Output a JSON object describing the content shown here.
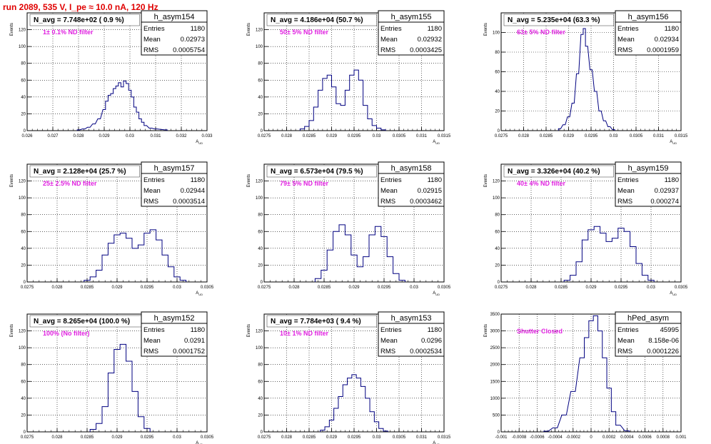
{
  "run_title": "run 2089,   535 V, I_pe ≈ 10.0 nA, 120 Hz",
  "colors": {
    "histogram": "#000080",
    "title": "#e00000",
    "filter_label": "#e020e0",
    "grid": "#000000"
  },
  "chart_data": [
    {
      "type": "histogram",
      "name": "h_asym154",
      "annotation": "N_avg = 7.748e+02 ( 0.9 %)",
      "filter_label": "1± 0.1% ND filter",
      "stats": {
        "Entries": "1180",
        "Mean": "0.02973",
        "RMS": "0.0005754"
      },
      "xlabel": "A_UD",
      "ylabel": "Events",
      "xlim": [
        0.026,
        0.033
      ],
      "ylim": [
        0,
        140
      ],
      "xticks": [
        "0.026",
        "0.027",
        "0.028",
        "0.029",
        "0.03",
        "0.031",
        "0.032",
        "0.033"
      ],
      "yticks": [
        "0",
        "20",
        "40",
        "60",
        "80",
        "100",
        "120"
      ],
      "x": [
        0.028,
        0.0282,
        0.0284,
        0.0286,
        0.0288,
        0.029,
        0.0291,
        0.0292,
        0.0293,
        0.0294,
        0.0295,
        0.0296,
        0.0297,
        0.0298,
        0.0299,
        0.03,
        0.0301,
        0.0302,
        0.0303,
        0.0304,
        0.0305,
        0.0306,
        0.0308,
        0.031,
        0.0314
      ],
      "y": [
        1,
        2,
        4,
        8,
        14,
        25,
        35,
        42,
        44,
        50,
        53,
        57,
        52,
        59,
        56,
        48,
        40,
        28,
        22,
        14,
        10,
        6,
        3,
        2,
        1
      ]
    },
    {
      "type": "histogram",
      "name": "h_asym155",
      "annotation": "N_avg = 4.186e+04 (50.7 %)",
      "filter_label": "50± 5% ND filter",
      "stats": {
        "Entries": "1180",
        "Mean": "0.02932",
        "RMS": "0.0003425"
      },
      "xlabel": "A_UD",
      "ylabel": "Events",
      "xlim": [
        0.0275,
        0.0315
      ],
      "ylim": [
        0,
        140
      ],
      "xticks": [
        "0.0275",
        "0.028",
        "0.0285",
        "0.029",
        "0.0295",
        "0.03",
        "0.0305",
        "0.031",
        "0.0315"
      ],
      "yticks": [
        "0",
        "20",
        "40",
        "60",
        "80",
        "100",
        "120"
      ],
      "x": [
        0.02835,
        0.02845,
        0.02855,
        0.02865,
        0.02875,
        0.02885,
        0.02895,
        0.02905,
        0.02915,
        0.02925,
        0.02935,
        0.02945,
        0.02955,
        0.02965,
        0.02975,
        0.02985,
        0.02995,
        0.03005,
        0.03015
      ],
      "y": [
        2,
        5,
        12,
        28,
        48,
        62,
        66,
        52,
        32,
        30,
        48,
        66,
        72,
        60,
        30,
        14,
        6,
        3,
        1
      ]
    },
    {
      "type": "histogram",
      "name": "h_asym156",
      "annotation": "N_avg = 5.235e+04 (63.3 %)",
      "filter_label": "63± 5% ND filter",
      "stats": {
        "Entries": "1180",
        "Mean": "0.02934",
        "RMS": "0.0001959"
      },
      "xlabel": "A_UD",
      "ylabel": "Events",
      "xlim": [
        0.0275,
        0.0315
      ],
      "ylim": [
        0,
        120
      ],
      "xticks": [
        "0.0275",
        "0.028",
        "0.0285",
        "0.029",
        "0.0295",
        "0.03",
        "0.0305",
        "0.031",
        "0.0315"
      ],
      "yticks": [
        "0",
        "20",
        "40",
        "60",
        "80",
        "100"
      ],
      "x": [
        0.0288,
        0.0289,
        0.029,
        0.0291,
        0.0292,
        0.0293,
        0.02935,
        0.0294,
        0.0295,
        0.0296,
        0.0297,
        0.0298,
        0.0299,
        0.03
      ],
      "y": [
        2,
        6,
        14,
        28,
        58,
        98,
        104,
        86,
        62,
        40,
        20,
        10,
        4,
        1
      ]
    },
    {
      "type": "histogram",
      "name": "h_asym157",
      "annotation": "N_avg = 2.128e+04 (25.7 %)",
      "filter_label": "25± 2.5% ND filter",
      "stats": {
        "Entries": "1180",
        "Mean": "0.02944",
        "RMS": "0.0003514"
      },
      "xlabel": "A_UD",
      "ylabel": "Events",
      "xlim": [
        0.0275,
        0.0305
      ],
      "ylim": [
        0,
        140
      ],
      "xticks": [
        "0.0275",
        "0.028",
        "0.0285",
        "0.029",
        "0.0295",
        "0.03",
        "0.0305"
      ],
      "yticks": [
        "0",
        "20",
        "40",
        "60",
        "80",
        "100",
        "120"
      ],
      "x": [
        0.0285,
        0.0286,
        0.0287,
        0.0288,
        0.0289,
        0.029,
        0.0291,
        0.0292,
        0.0293,
        0.0294,
        0.0295,
        0.0296,
        0.0297,
        0.0298,
        0.0299,
        0.03,
        0.0301
      ],
      "y": [
        2,
        6,
        14,
        32,
        46,
        56,
        58,
        52,
        40,
        44,
        58,
        62,
        50,
        32,
        18,
        6,
        2
      ]
    },
    {
      "type": "histogram",
      "name": "h_asym158",
      "annotation": "N_avg = 6.573e+04 (79.5 %)",
      "filter_label": "79± 5% ND filter",
      "stats": {
        "Entries": "1180",
        "Mean": "0.02915",
        "RMS": "0.0003462"
      },
      "xlabel": "A_UD",
      "ylabel": "Events",
      "xlim": [
        0.0275,
        0.0305
      ],
      "ylim": [
        0,
        140
      ],
      "xticks": [
        "0.0275",
        "0.028",
        "0.0285",
        "0.029",
        "0.0295",
        "0.03",
        "0.0305"
      ],
      "yticks": [
        "0",
        "20",
        "40",
        "60",
        "80",
        "100",
        "120"
      ],
      "x": [
        0.0284,
        0.0285,
        0.0286,
        0.0287,
        0.0288,
        0.0289,
        0.029,
        0.0291,
        0.0292,
        0.0293,
        0.0294,
        0.0295,
        0.0296,
        0.0297,
        0.0298
      ],
      "y": [
        4,
        14,
        38,
        60,
        68,
        56,
        32,
        18,
        30,
        56,
        66,
        54,
        30,
        10,
        2
      ]
    },
    {
      "type": "histogram",
      "name": "h_asym159",
      "annotation": "N_avg = 3.326e+04 (40.2 %)",
      "filter_label": "40± 4% ND filter",
      "stats": {
        "Entries": "1180",
        "Mean": "0.02937",
        "RMS": "0.000274"
      },
      "xlabel": "A_UD",
      "ylabel": "Events",
      "xlim": [
        0.0275,
        0.0305
      ],
      "ylim": [
        0,
        140
      ],
      "xticks": [
        "0.0275",
        "0.028",
        "0.0285",
        "0.029",
        "0.0295",
        "0.03",
        "0.0305"
      ],
      "yticks": [
        "0",
        "20",
        "40",
        "60",
        "80",
        "100",
        "120"
      ],
      "x": [
        0.0286,
        0.0287,
        0.0288,
        0.0289,
        0.029,
        0.0291,
        0.0292,
        0.0293,
        0.0294,
        0.0295,
        0.0296,
        0.0297,
        0.0298,
        0.0299,
        0.03
      ],
      "y": [
        2,
        8,
        24,
        50,
        62,
        66,
        58,
        48,
        52,
        64,
        60,
        42,
        22,
        8,
        2
      ]
    },
    {
      "type": "histogram",
      "name": "h_asym152",
      "annotation": "N_avg = 8.265e+04 (100.0 %)",
      "filter_label": "100% (No filter)",
      "stats": {
        "Entries": "1180",
        "Mean": "0.0291",
        "RMS": "0.0001752"
      },
      "xlabel": "A_UD",
      "ylabel": "Events",
      "xlim": [
        0.0275,
        0.0305
      ],
      "ylim": [
        0,
        140
      ],
      "xticks": [
        "0.0275",
        "0.028",
        "0.0285",
        "0.029",
        "0.0295",
        "0.03",
        "0.0305"
      ],
      "yticks": [
        "0",
        "20",
        "40",
        "60",
        "80",
        "100",
        "120"
      ],
      "x": [
        0.0286,
        0.0287,
        0.0288,
        0.0289,
        0.029,
        0.0291,
        0.0292,
        0.0293,
        0.0294,
        0.0295
      ],
      "y": [
        3,
        10,
        30,
        70,
        98,
        104,
        84,
        48,
        18,
        4
      ]
    },
    {
      "type": "histogram",
      "name": "h_asym153",
      "annotation": "N_avg = 7.784e+03 ( 9.4 %)",
      "filter_label": "10± 1% ND filter",
      "stats": {
        "Entries": "1180",
        "Mean": "0.0296",
        "RMS": "0.0002534"
      },
      "xlabel": "A_UD",
      "ylabel": "Events",
      "xlim": [
        0.0275,
        0.0315
      ],
      "ylim": [
        0,
        140
      ],
      "xticks": [
        "0.0275",
        "0.028",
        "0.0285",
        "0.029",
        "0.0295",
        "0.03",
        "0.0305",
        "0.031",
        "0.0315"
      ],
      "yticks": [
        "0",
        "20",
        "40",
        "60",
        "80",
        "100",
        "120"
      ],
      "x": [
        0.0288,
        0.0289,
        0.029,
        0.0291,
        0.0292,
        0.0293,
        0.0294,
        0.0295,
        0.0296,
        0.0297,
        0.0298,
        0.0299,
        0.03,
        0.0301,
        0.0302
      ],
      "y": [
        2,
        6,
        14,
        28,
        42,
        56,
        64,
        68,
        64,
        54,
        40,
        24,
        12,
        4,
        1
      ]
    },
    {
      "type": "histogram",
      "name": "hPed_asym",
      "annotation": "",
      "filter_label": "Shutter Closed",
      "stats": {
        "Entries": "45995",
        "Mean": "8.158e-06",
        "RMS": "0.0001226"
      },
      "xlabel": "",
      "ylabel": "Events",
      "xlim": [
        -0.001,
        0.001
      ],
      "ylim": [
        0,
        3500
      ],
      "xticks": [
        "-0.001",
        "-0.0008",
        "-0.0006",
        "-0.0004",
        "-0.0002",
        "0",
        "0.0002",
        "0.0004",
        "0.0006",
        "0.0008",
        "0.001"
      ],
      "yticks": [
        "0",
        "500",
        "1000",
        "1500",
        "2000",
        "2500",
        "3000",
        "3500"
      ],
      "x": [
        -0.0005,
        -0.0004,
        -0.0003,
        -0.0002,
        -0.0001,
        -5e-05,
        0.0,
        5e-05,
        0.0001,
        0.00015,
        0.0002,
        0.00025,
        0.0003,
        0.0004
      ],
      "y": [
        20,
        120,
        500,
        1200,
        2200,
        2800,
        3300,
        3450,
        3000,
        2200,
        1300,
        600,
        200,
        30
      ]
    }
  ]
}
